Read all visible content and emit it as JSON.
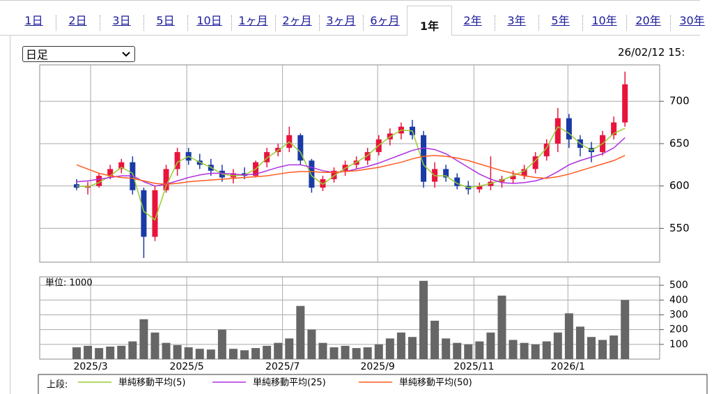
{
  "tabs": [
    "1日",
    "2日",
    "3日",
    "5日",
    "10日",
    "1ヶ月",
    "2ヶ月",
    "3ヶ月",
    "6ヶ月",
    "1年",
    "2年",
    "3年",
    "5年",
    "10年",
    "20年",
    "30年"
  ],
  "selected_tab_index": 9,
  "select": {
    "value": "日足"
  },
  "timestamp": "26/02/12 15:",
  "legend_prefix": "上段:",
  "chart_data": [
    {
      "type": "candlestick",
      "open": [
        602,
        598,
        600,
        612,
        620,
        628,
        595,
        540,
        595,
        620,
        640,
        630,
        625,
        618,
        610,
        615,
        612,
        628,
        640,
        645,
        660,
        630,
        598,
        608,
        618,
        625,
        630,
        640,
        655,
        662,
        670,
        660,
        605,
        620,
        610,
        600,
        596,
        600,
        605,
        608,
        612,
        620,
        635,
        650,
        680,
        655,
        645,
        640,
        660,
        675
      ],
      "high": [
        608,
        605,
        615,
        625,
        632,
        635,
        598,
        600,
        625,
        645,
        645,
        638,
        632,
        625,
        620,
        622,
        630,
        645,
        650,
        670,
        662,
        632,
        612,
        622,
        630,
        635,
        645,
        660,
        668,
        675,
        678,
        665,
        628,
        625,
        615,
        606,
        604,
        635,
        612,
        618,
        625,
        640,
        655,
        692,
        685,
        660,
        652,
        665,
        682,
        735
      ],
      "low": [
        595,
        590,
        598,
        608,
        615,
        590,
        515,
        535,
        592,
        612,
        625,
        620,
        612,
        605,
        603,
        608,
        610,
        622,
        635,
        640,
        625,
        592,
        594,
        604,
        612,
        620,
        625,
        636,
        648,
        655,
        655,
        598,
        598,
        605,
        596,
        590,
        592,
        595,
        598,
        603,
        608,
        615,
        630,
        640,
        645,
        635,
        628,
        636,
        655,
        670
      ],
      "close": [
        598,
        600,
        612,
        620,
        628,
        595,
        540,
        595,
        620,
        640,
        630,
        625,
        618,
        610,
        615,
        612,
        628,
        640,
        645,
        660,
        630,
        598,
        608,
        618,
        625,
        630,
        640,
        655,
        662,
        670,
        660,
        605,
        620,
        610,
        600,
        596,
        600,
        605,
        608,
        612,
        620,
        635,
        650,
        680,
        655,
        645,
        640,
        660,
        675,
        720
      ],
      "up_color": "#e8143c",
      "down_color": "#1a3aa6",
      "series": [
        {
          "name": "単純移動平均(5)",
          "color": "#9acd32",
          "values": [
            600,
            599,
            604,
            612,
            622,
            615,
            570,
            560,
            600,
            628,
            635,
            628,
            622,
            614,
            612,
            613,
            620,
            633,
            642,
            652,
            640,
            612,
            602,
            612,
            621,
            628,
            636,
            648,
            658,
            666,
            665,
            625,
            612,
            612,
            603,
            598,
            600,
            603,
            607,
            612,
            618,
            630,
            645,
            670,
            662,
            650,
            642,
            650,
            662,
            668
          ]
        },
        {
          "name": "単純移動平均(25)",
          "color": "#b02ee0",
          "values": [
            605,
            606,
            608,
            610,
            612,
            612,
            605,
            600,
            602,
            606,
            610,
            613,
            615,
            615,
            614,
            613,
            614,
            618,
            622,
            625,
            625,
            622,
            618,
            616,
            617,
            620,
            623,
            627,
            632,
            637,
            642,
            645,
            643,
            638,
            630,
            622,
            614,
            608,
            604,
            603,
            604,
            606,
            610,
            617,
            625,
            630,
            634,
            638,
            645,
            657
          ]
        },
        {
          "name": "単純移動平均(50)",
          "color": "#ff5a1e",
          "values": [
            625,
            620,
            615,
            612,
            610,
            609,
            606,
            603,
            602,
            603,
            605,
            606,
            607,
            608,
            609,
            610,
            611,
            612,
            614,
            616,
            617,
            617,
            616,
            616,
            617,
            618,
            620,
            622,
            625,
            628,
            632,
            635,
            636,
            635,
            633,
            630,
            626,
            622,
            618,
            615,
            612,
            610,
            609,
            611,
            614,
            618,
            622,
            626,
            630,
            636
          ]
        }
      ],
      "ylim": [
        510,
        743
      ],
      "yticks": [
        550,
        600,
        650,
        700
      ],
      "grid": true
    },
    {
      "type": "bar",
      "unit_label": "単位: 1000",
      "color": "#666666",
      "values": [
        80,
        90,
        75,
        85,
        90,
        120,
        270,
        180,
        110,
        95,
        80,
        70,
        65,
        200,
        70,
        60,
        75,
        90,
        110,
        140,
        360,
        200,
        110,
        80,
        90,
        75,
        80,
        100,
        140,
        180,
        150,
        530,
        260,
        140,
        110,
        100,
        120,
        180,
        430,
        130,
        110,
        100,
        120,
        180,
        310,
        220,
        150,
        130,
        160,
        400
      ],
      "ylim": [
        0,
        557
      ],
      "yticks": [
        100,
        200,
        300,
        400,
        500
      ],
      "xlim": [
        -3.3,
        52.1
      ],
      "xticks": [
        {
          "value": 1.25,
          "label": "2025/3"
        },
        {
          "value": 9.84,
          "label": "2025/5"
        },
        {
          "value": 18.4,
          "label": "2025/7"
        },
        {
          "value": 26.9,
          "label": "2025/9"
        },
        {
          "value": 35.5,
          "label": "2025/11"
        },
        {
          "value": 43.9,
          "label": "2026/1"
        }
      ],
      "grid": true
    }
  ]
}
